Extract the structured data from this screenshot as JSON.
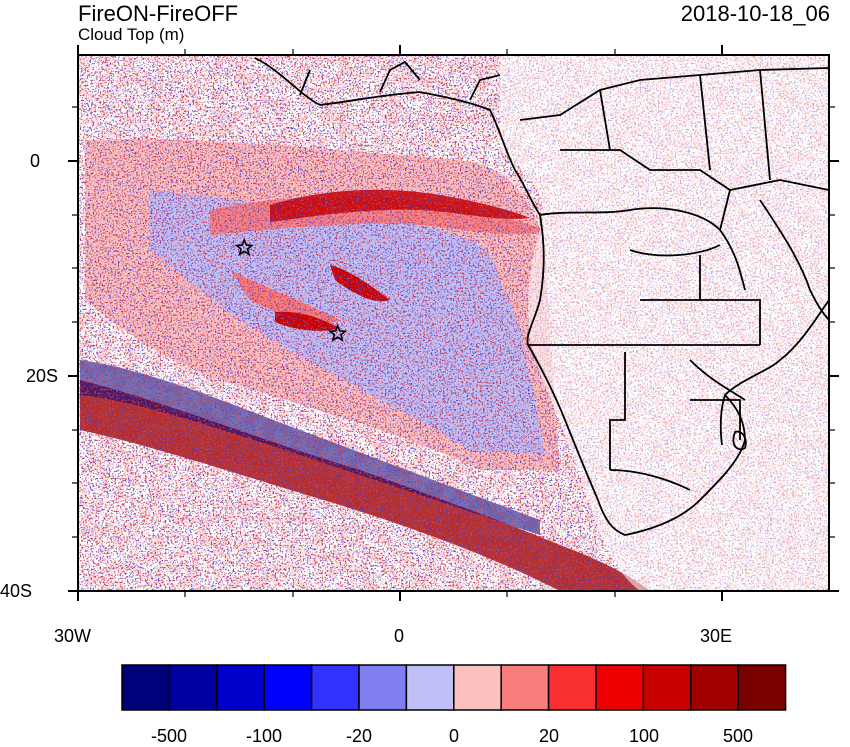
{
  "header": {
    "title": "FireON-FireOFF",
    "subtitle": "Cloud Top (m)",
    "date": "2018-10-18_06"
  },
  "axes": {
    "lat_labels": [
      "0",
      "20S",
      "40S"
    ],
    "lon_labels": [
      "30W",
      "0",
      "30E"
    ],
    "lon_range": [
      -30,
      40
    ],
    "lat_range": [
      -40,
      10
    ]
  },
  "colorbar": {
    "labels": [
      "-500",
      "-100",
      "-20",
      "0",
      "20",
      "100",
      "500"
    ],
    "colors": [
      "#00007a",
      "#0000a0",
      "#0000cc",
      "#0000ff",
      "#3333ff",
      "#7f7ff2",
      "#c0c0f8",
      "#fbc0c0",
      "#f87e7e",
      "#f83030",
      "#ee0000",
      "#c80000",
      "#a00000",
      "#7a0000"
    ]
  },
  "markers": [
    {
      "name": "star-west",
      "lon": -14.5,
      "lat": -8.0
    },
    {
      "name": "star-center",
      "lon": -5.8,
      "lat": -16.0
    }
  ]
}
